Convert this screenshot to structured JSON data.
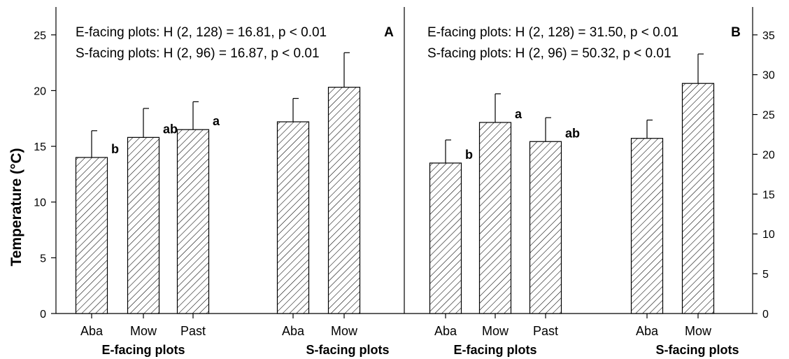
{
  "chart_data": [
    {
      "type": "bar",
      "panel": "A",
      "ylabel": "Temperature (°C)",
      "ylim": [
        0,
        27.5
      ],
      "yticks": [
        0,
        5,
        10,
        15,
        20,
        25
      ],
      "stats": [
        "E-facing plots: H (2, 128) = 16.81, p < 0.01",
        "S-facing plots: H (2, 96) = 16.87, p < 0.01"
      ],
      "groups": [
        {
          "name": "E-facing plots",
          "bars": [
            {
              "category": "Aba",
              "value": 14.0,
              "error": 2.4,
              "sig": "b"
            },
            {
              "category": "Mow",
              "value": 15.8,
              "error": 2.6,
              "sig": "ab"
            },
            {
              "category": "Past",
              "value": 16.5,
              "error": 2.5,
              "sig": "a"
            }
          ]
        },
        {
          "name": "S-facing plots",
          "bars": [
            {
              "category": "Aba",
              "value": 17.2,
              "error": 2.1,
              "sig": ""
            },
            {
              "category": "Mow",
              "value": 20.3,
              "error": 3.1,
              "sig": ""
            }
          ]
        }
      ]
    },
    {
      "type": "bar",
      "panel": "B",
      "ylim": [
        0,
        38.5
      ],
      "yticks": [
        0,
        5,
        10,
        15,
        20,
        25,
        30,
        35
      ],
      "stats": [
        "E-facing plots: H (2, 128) = 31.50, p < 0.01",
        "S-facing plots: H (2, 96) = 50.32, p < 0.01"
      ],
      "groups": [
        {
          "name": "E-facing plots",
          "bars": [
            {
              "category": "Aba",
              "value": 18.9,
              "error": 2.9,
              "sig": "b"
            },
            {
              "category": "Mow",
              "value": 24.0,
              "error": 3.6,
              "sig": "a"
            },
            {
              "category": "Past",
              "value": 21.6,
              "error": 3.0,
              "sig": "ab"
            }
          ]
        },
        {
          "name": "S-facing plots",
          "bars": [
            {
              "category": "Aba",
              "value": 22.0,
              "error": 2.3,
              "sig": ""
            },
            {
              "category": "Mow",
              "value": 28.9,
              "error": 3.7,
              "sig": ""
            }
          ]
        }
      ]
    }
  ]
}
